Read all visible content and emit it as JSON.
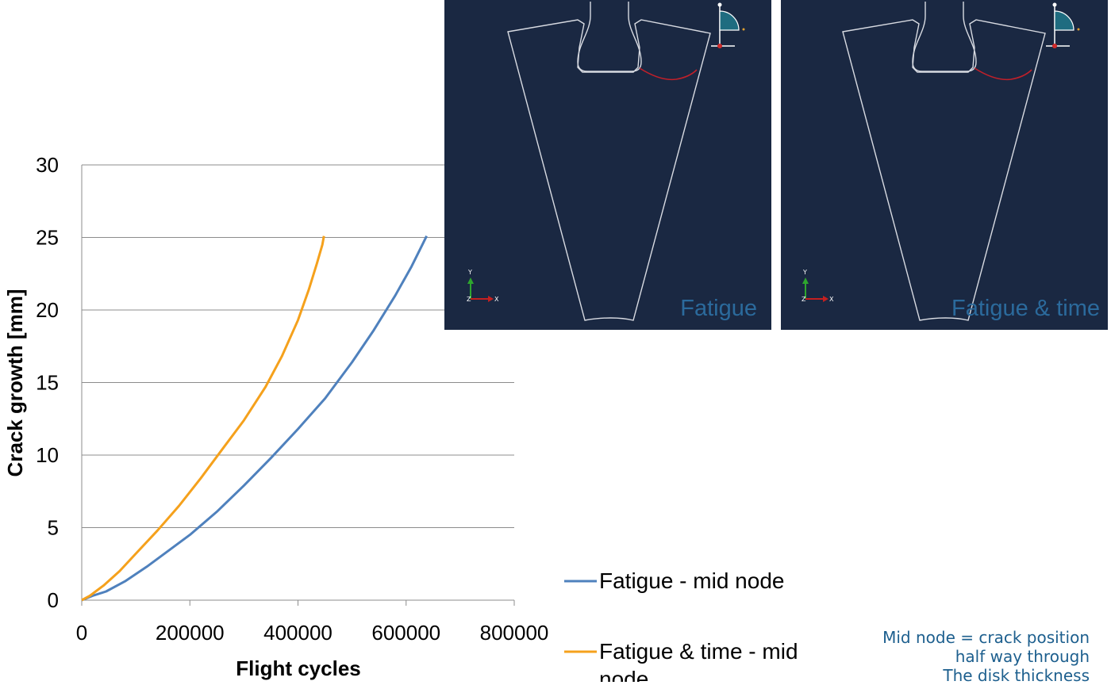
{
  "chart_data": {
    "type": "line",
    "xlabel": "Flight cycles",
    "ylabel": "Crack growth [mm]",
    "xlim": [
      0,
      800000
    ],
    "ylim": [
      0,
      30
    ],
    "xticks": [
      0,
      200000,
      400000,
      600000,
      800000
    ],
    "yticks": [
      0,
      5,
      10,
      15,
      20,
      25,
      30
    ],
    "grid": "horizontal",
    "legend_position": "bottom-right",
    "series": [
      {
        "name": "Fatigue - mid node",
        "color": "#4f81bd",
        "x": [
          0,
          20000,
          45000,
          80000,
          120000,
          160000,
          200000,
          250000,
          300000,
          350000,
          400000,
          450000,
          500000,
          540000,
          580000,
          610000,
          630000,
          638000
        ],
        "y": [
          0,
          0.3,
          0.6,
          1.3,
          2.3,
          3.4,
          4.5,
          6.1,
          7.9,
          9.8,
          11.8,
          13.9,
          16.4,
          18.6,
          21.0,
          23.0,
          24.5,
          25.1
        ]
      },
      {
        "name": "Fatigue & time - mid node",
        "color": "#f5a11c",
        "x": [
          0,
          15000,
          40000,
          70000,
          100000,
          140000,
          180000,
          220000,
          260000,
          300000,
          340000,
          370000,
          400000,
          420000,
          435000,
          445000,
          448000
        ],
        "y": [
          0,
          0.3,
          1.0,
          2.0,
          3.2,
          4.8,
          6.5,
          8.4,
          10.4,
          12.4,
          14.7,
          16.8,
          19.3,
          21.4,
          23.2,
          24.5,
          25.1
        ]
      }
    ]
  },
  "panels": [
    {
      "label": "Fatigue"
    },
    {
      "label": "Fatigue & time"
    }
  ],
  "triad": {
    "y": "Y",
    "x": "X",
    "z": "Z"
  },
  "note": {
    "line1": "Mid node = crack position",
    "line2": "half way through",
    "line3": "The disk thickness"
  }
}
